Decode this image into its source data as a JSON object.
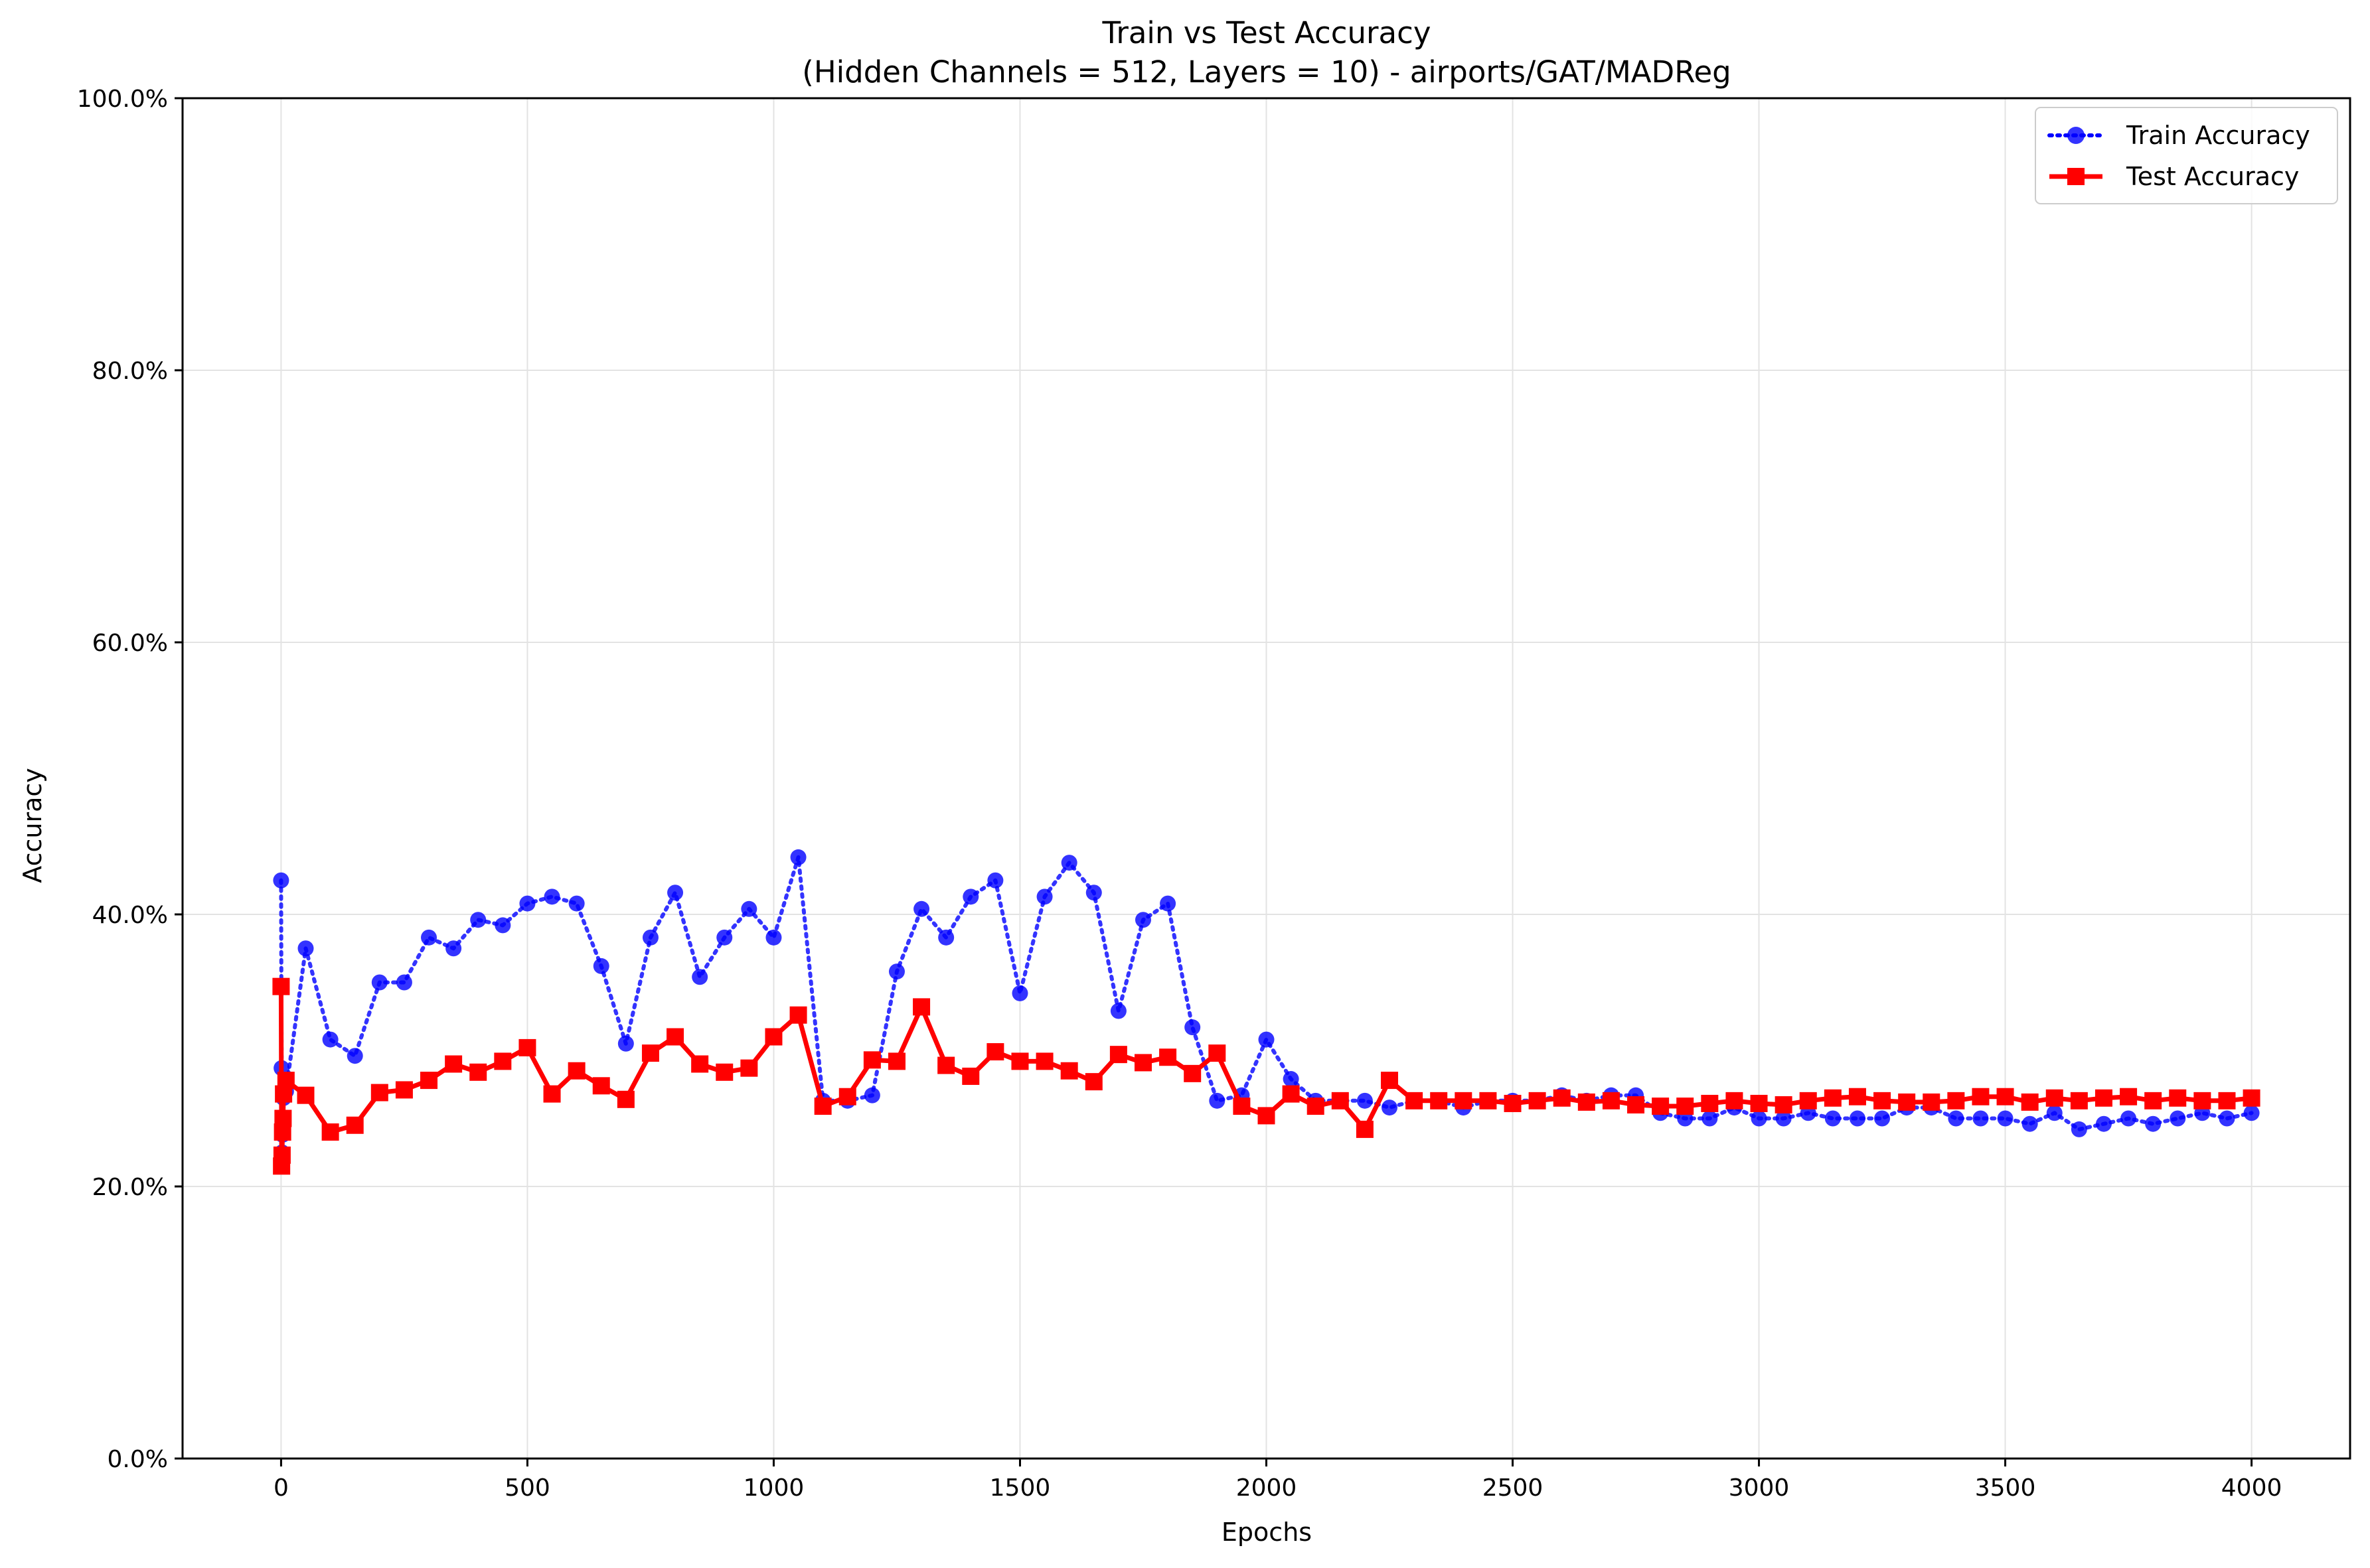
{
  "chart_data": {
    "type": "line",
    "title": "Train vs Test Accuracy",
    "subtitle": "(Hidden Channels = 512, Layers = 10) - airports/GAT/MADReg",
    "xlabel": "Epochs",
    "ylabel": "Accuracy",
    "xlim": [
      -200,
      4200
    ],
    "ylim": [
      0,
      100
    ],
    "x_ticks": [
      0,
      500,
      1000,
      1500,
      2000,
      2500,
      3000,
      3500,
      4000
    ],
    "x_tick_labels": [
      "0",
      "500",
      "1000",
      "1500",
      "2000",
      "2500",
      "3000",
      "3500",
      "4000"
    ],
    "y_ticks": [
      0,
      20,
      40,
      60,
      80,
      100
    ],
    "y_tick_labels": [
      "0.0%",
      "20.0%",
      "40.0%",
      "60.0%",
      "80.0%",
      "100.0%"
    ],
    "grid": true,
    "legend_position": "top-right",
    "series": [
      {
        "name": "Train Accuracy",
        "color": "#0000ff",
        "line_style": "dotted",
        "marker": "circle",
        "x": [
          0,
          1,
          2,
          3,
          4,
          5,
          10,
          50,
          100,
          150,
          200,
          250,
          300,
          350,
          400,
          450,
          500,
          550,
          600,
          650,
          700,
          750,
          800,
          850,
          900,
          950,
          1000,
          1050,
          1100,
          1150,
          1200,
          1250,
          1300,
          1350,
          1400,
          1450,
          1500,
          1550,
          1600,
          1650,
          1700,
          1750,
          1800,
          1850,
          1900,
          1950,
          2000,
          2050,
          2100,
          2150,
          2200,
          2250,
          2300,
          2350,
          2400,
          2450,
          2500,
          2550,
          2600,
          2650,
          2700,
          2750,
          2800,
          2850,
          2900,
          2950,
          3000,
          3050,
          3100,
          3150,
          3200,
          3250,
          3300,
          3350,
          3400,
          3450,
          3500,
          3550,
          3600,
          3650,
          3700,
          3750,
          3800,
          3850,
          3900,
          3950,
          4000
        ],
        "y": [
          42.5,
          28.7,
          22.5,
          23.8,
          24.5,
          26.5,
          27.0,
          37.5,
          30.8,
          29.6,
          35.0,
          35.0,
          38.3,
          37.5,
          39.6,
          39.2,
          40.8,
          41.3,
          40.8,
          36.2,
          30.5,
          38.3,
          41.6,
          35.4,
          38.3,
          40.4,
          38.3,
          44.2,
          26.3,
          26.3,
          26.7,
          35.8,
          40.4,
          38.3,
          41.3,
          42.5,
          34.2,
          41.3,
          43.8,
          41.6,
          32.9,
          39.6,
          40.8,
          31.7,
          26.3,
          26.7,
          30.8,
          27.9,
          26.3,
          26.3,
          26.3,
          25.8,
          26.3,
          26.3,
          25.8,
          26.3,
          26.3,
          26.3,
          26.7,
          26.3,
          26.7,
          26.7,
          25.4,
          25.0,
          25.0,
          25.8,
          25.0,
          25.0,
          25.4,
          25.0,
          25.0,
          25.0,
          25.8,
          25.8,
          25.0,
          25.0,
          25.0,
          24.6,
          25.4,
          24.2,
          24.6,
          25.0,
          24.6,
          25.0,
          25.4,
          25.0,
          25.4
        ]
      },
      {
        "name": "Test Accuracy",
        "color": "#ff0000",
        "line_style": "solid",
        "marker": "square",
        "x": [
          0,
          1,
          2,
          3,
          4,
          5,
          10,
          50,
          100,
          150,
          200,
          250,
          300,
          350,
          400,
          450,
          500,
          550,
          600,
          650,
          700,
          750,
          800,
          850,
          900,
          950,
          1000,
          1050,
          1100,
          1150,
          1200,
          1250,
          1300,
          1350,
          1400,
          1450,
          1500,
          1550,
          1600,
          1650,
          1700,
          1750,
          1800,
          1850,
          1900,
          1950,
          2000,
          2050,
          2100,
          2150,
          2200,
          2250,
          2300,
          2350,
          2400,
          2450,
          2500,
          2550,
          2600,
          2650,
          2700,
          2750,
          2800,
          2850,
          2900,
          2950,
          3000,
          3050,
          3100,
          3150,
          3200,
          3250,
          3300,
          3350,
          3400,
          3450,
          3500,
          3550,
          3600,
          3650,
          3700,
          3750,
          3800,
          3850,
          3900,
          3950,
          4000
        ],
        "y": [
          34.7,
          21.5,
          22.3,
          24.0,
          25.0,
          26.8,
          27.8,
          26.7,
          24.0,
          24.5,
          26.9,
          27.1,
          27.8,
          29.0,
          28.4,
          29.2,
          30.2,
          26.8,
          28.5,
          27.4,
          26.4,
          29.8,
          31.0,
          29.0,
          28.4,
          28.7,
          31.0,
          32.6,
          25.9,
          26.6,
          29.3,
          29.2,
          33.2,
          28.9,
          28.1,
          29.9,
          29.2,
          29.2,
          28.5,
          27.7,
          29.7,
          29.1,
          29.5,
          28.3,
          29.8,
          25.9,
          25.2,
          26.8,
          25.9,
          26.3,
          24.2,
          27.8,
          26.3,
          26.3,
          26.3,
          26.3,
          26.1,
          26.3,
          26.5,
          26.2,
          26.3,
          26.0,
          25.9,
          25.9,
          26.1,
          26.3,
          26.1,
          26.0,
          26.3,
          26.5,
          26.6,
          26.3,
          26.2,
          26.2,
          26.3,
          26.6,
          26.6,
          26.2,
          26.5,
          26.3,
          26.5,
          26.6,
          26.3,
          26.5,
          26.3,
          26.3,
          26.5
        ]
      }
    ]
  }
}
